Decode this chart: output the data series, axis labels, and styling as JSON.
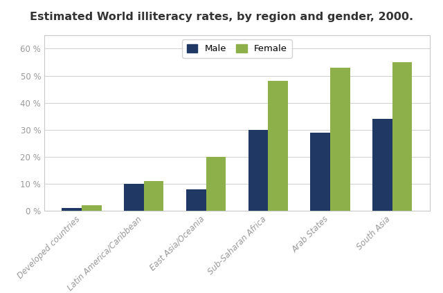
{
  "title": "Estimated World illiteracy rates, by region and gender, 2000.",
  "categories": [
    "Developed countries",
    "Latin America/Caribbean",
    "East Asia/Oceania",
    "Sub-Saharan Africa",
    "Arab States",
    "South Asia"
  ],
  "male_values": [
    1,
    10,
    8,
    30,
    29,
    34
  ],
  "female_values": [
    2,
    11,
    20,
    48,
    53,
    55
  ],
  "male_color": "#1f3864",
  "female_color": "#8db04b",
  "bar_width": 0.32,
  "ylim": [
    0,
    65
  ],
  "yticks": [
    0,
    10,
    20,
    30,
    40,
    50,
    60
  ],
  "ytick_labels": [
    "0 %",
    "10 %",
    "20 %",
    "30 %",
    "40 %",
    "50 %",
    "60 %"
  ],
  "legend_labels": [
    "Male",
    "Female"
  ],
  "background_color": "#ffffff",
  "plot_bg_color": "#ffffff",
  "grid_color": "#d0d0d0",
  "border_color": "#c8c8c8",
  "title_fontsize": 11.5,
  "tick_fontsize": 8.5,
  "legend_fontsize": 9.5,
  "xtick_color": "#999999",
  "ytick_color": "#999999"
}
